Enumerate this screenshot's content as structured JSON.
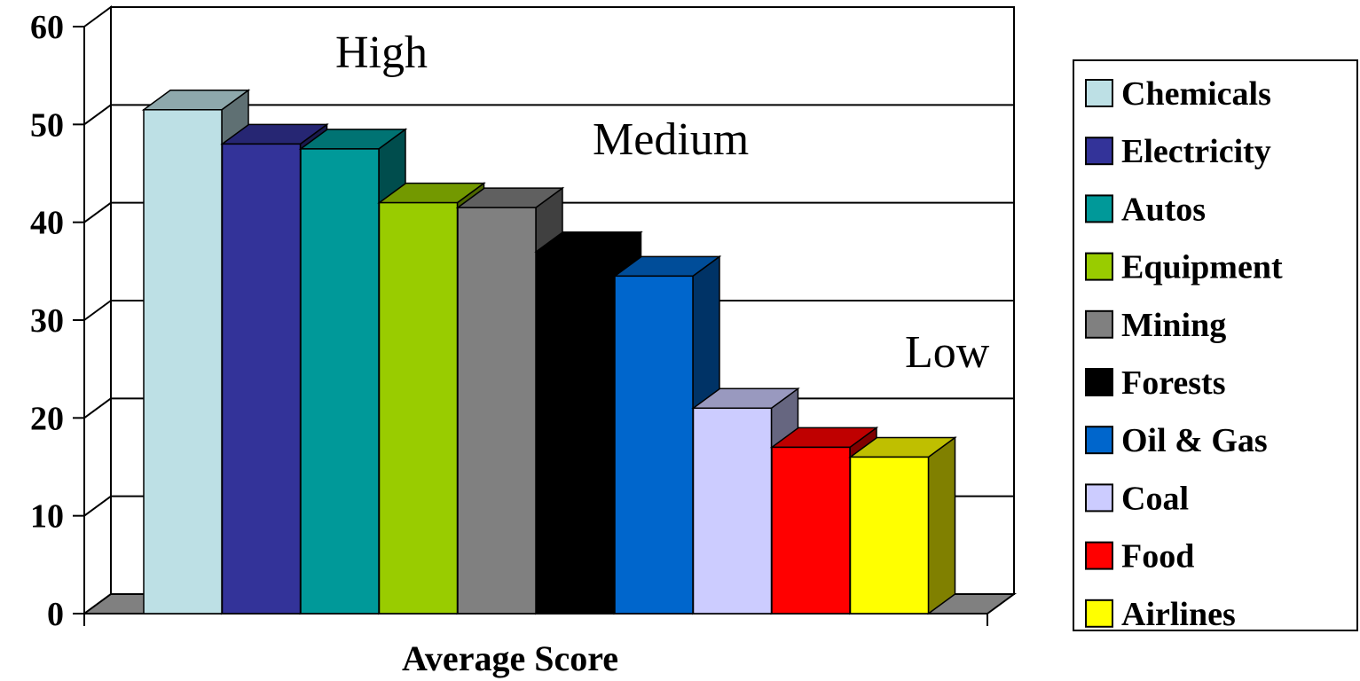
{
  "chart_data": {
    "type": "bar",
    "categories": [
      "Chemicals",
      "Electricity",
      "Autos",
      "Equipment",
      "Mining",
      "Forests",
      "Oil & Gas",
      "Coal",
      "Food",
      "Airlines"
    ],
    "values": [
      51.5,
      48,
      47.5,
      42,
      41.5,
      37,
      34.5,
      21,
      17,
      16
    ],
    "colors": [
      "#bde0e5",
      "#333399",
      "#009999",
      "#99cc00",
      "#808080",
      "#000000",
      "#0066cc",
      "#ccccff",
      "#ff0000",
      "#ffff00"
    ],
    "xlabel": "Average Score",
    "ylim": [
      0,
      60
    ],
    "yticks": [
      "0",
      "10",
      "20",
      "30",
      "40",
      "50",
      "60"
    ],
    "zone_labels": [
      "High",
      "Medium",
      "Low"
    ],
    "grid": true,
    "legend_position": "right",
    "style": "3d-clustered-column"
  }
}
